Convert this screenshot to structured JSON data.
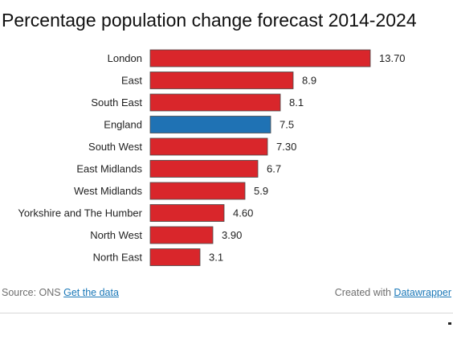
{
  "title": "Percentage population change forecast 2014-2024",
  "footer": {
    "source_label": "Source: ONS",
    "source_link": "Get the data",
    "credit_label": "Created with",
    "credit_link": "Datawrapper"
  },
  "colors": {
    "bar_default": "#d9262b",
    "bar_highlight": "#1f72b4",
    "bar_stroke": "#4a4a4a"
  },
  "chart_data": {
    "type": "bar",
    "orientation": "horizontal",
    "categories": [
      "London",
      "East",
      "South East",
      "England",
      "South West",
      "East Midlands",
      "West Midlands",
      "Yorkshire and The Humber",
      "North West",
      "North East"
    ],
    "values": [
      13.7,
      8.9,
      8.1,
      7.5,
      7.3,
      6.7,
      5.9,
      4.6,
      3.9,
      3.1
    ],
    "value_labels": [
      "13.70",
      "8.9",
      "8.1",
      "7.5",
      "7.30",
      "6.7",
      "5.9",
      "4.60",
      "3.90",
      "3.1"
    ],
    "highlight": "England",
    "xlim": [
      0,
      13.7
    ],
    "grid": false,
    "legend": "none"
  }
}
